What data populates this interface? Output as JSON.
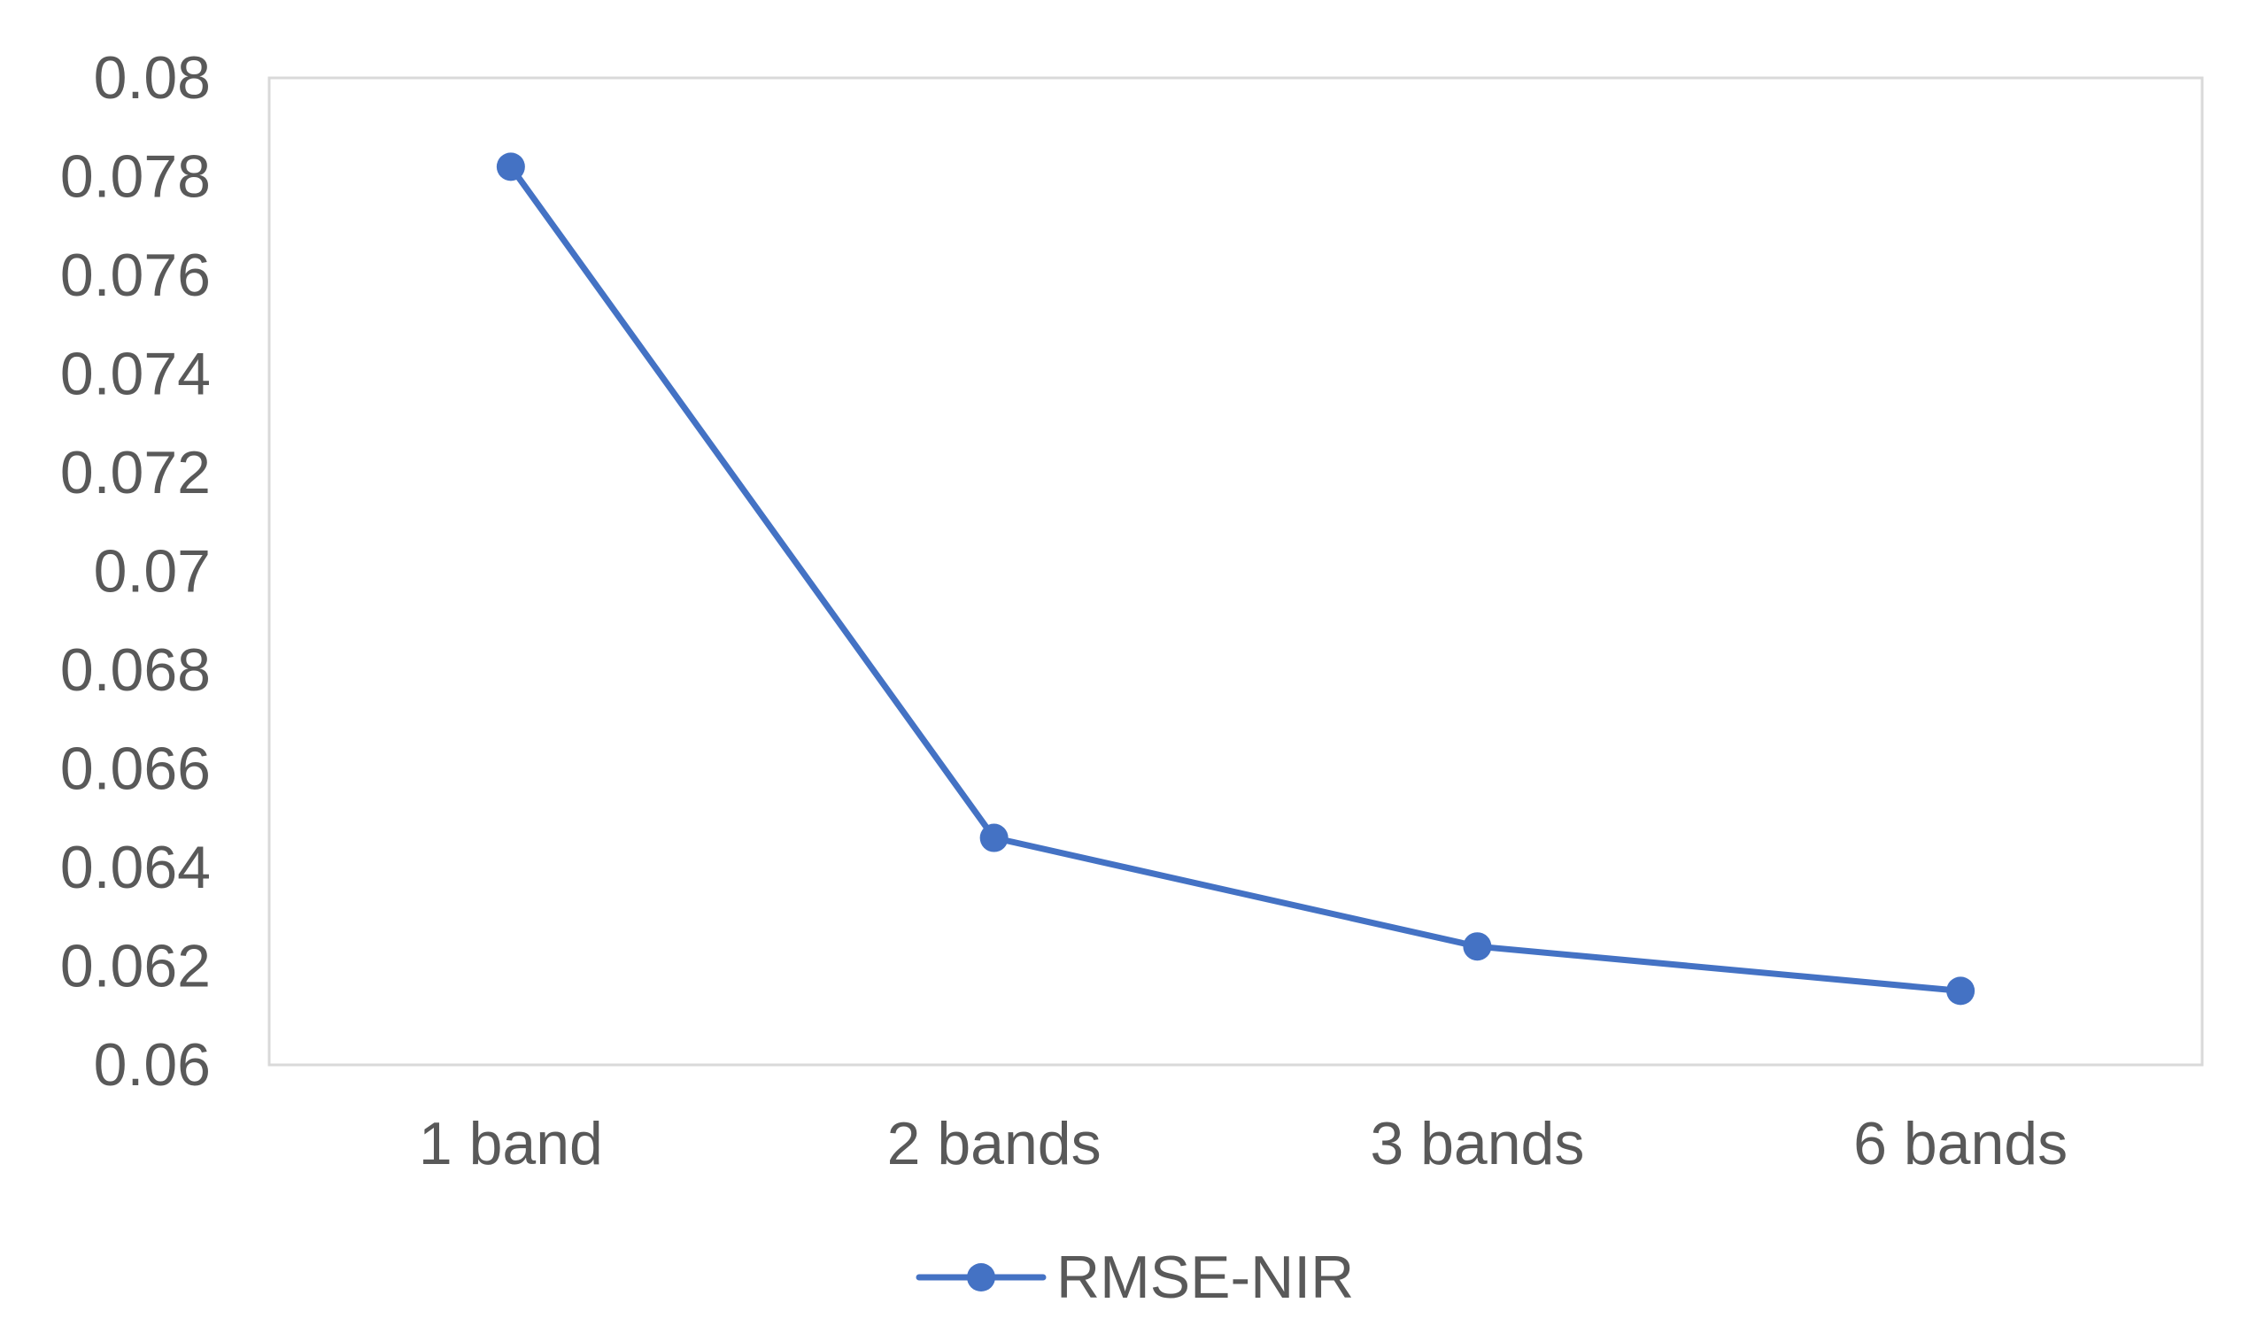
{
  "chart_data": {
    "type": "line",
    "categories": [
      "1 band",
      "2 bands",
      "3 bands",
      "6 bands"
    ],
    "series": [
      {
        "name": "RMSE-NIR",
        "values": [
          0.0782,
          0.0646,
          0.0624,
          0.0615
        ],
        "color": "#4472C4"
      }
    ],
    "ylim": [
      0.06,
      0.08
    ],
    "yticks": [
      0.06,
      0.062,
      0.064,
      0.066,
      0.068,
      0.07,
      0.072,
      0.074,
      0.076,
      0.078,
      0.08
    ],
    "ytick_labels": [
      "0.06",
      "0.062",
      "0.064",
      "0.066",
      "0.068",
      "0.07",
      "0.072",
      "0.074",
      "0.076",
      "0.078",
      "0.08"
    ],
    "grid": false,
    "legend_position": "bottom",
    "plot_border_color": "#D9D9D9"
  }
}
